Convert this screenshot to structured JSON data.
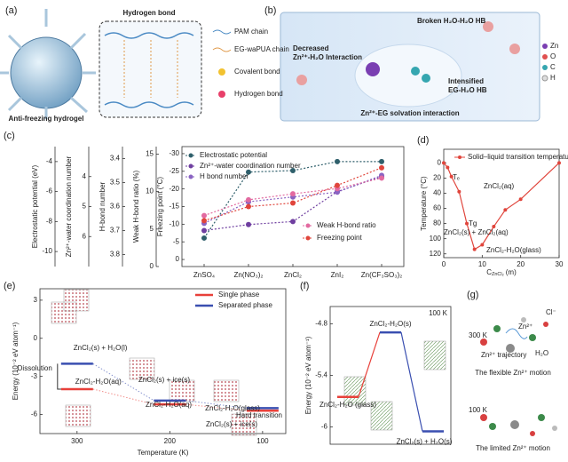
{
  "panels": {
    "a": {
      "label": "(a)",
      "title": "Hydrogen bond",
      "caption": "Anti-freezing hydrogel",
      "legend": [
        "PAM chain",
        "EG-waPUA chain",
        "Covalent bond",
        "Hydrogen bond"
      ]
    },
    "b": {
      "label": "(b)",
      "texts": [
        "Decreased",
        "Zn²⁺-H₂O Interaction",
        "Broken H₂O-H₂O HB",
        "Intensified",
        "EG-H₂O HB",
        "Zn²⁺-EG solvation interaction"
      ],
      "legend": [
        "Zn",
        "O",
        "C",
        "H"
      ]
    },
    "g": {
      "label": "(g)",
      "texts": [
        "300 K",
        "Cl⁻",
        "Zn²⁺",
        "Zn²⁺ trajectory",
        "H₂O",
        "The flexible Zn²⁺ motion",
        "100 K",
        "The limited Zn²⁺ motion"
      ]
    }
  },
  "chart_data": [
    {
      "type": "multiaxis_line",
      "label": "(c)",
      "categories": [
        "ZnSO₄",
        "Zn(NO₃)₂",
        "ZnCl₂",
        "ZnI₂",
        "Zn(CF₃SO₃)₂"
      ],
      "axes": [
        {
          "label": "Electrostatic potential (eV)",
          "ylim": [
            -11,
            -3
          ],
          "yticks": [
            -4,
            -6,
            -8,
            -10
          ]
        },
        {
          "label": "Zn²⁺-water coordination number",
          "ylim": [
            7,
            3
          ],
          "yticks": [
            4,
            5,
            6
          ]
        },
        {
          "label": "H-bond number",
          "ylim": [
            3.85,
            3.35
          ],
          "yticks": [
            3.4,
            3.5,
            3.6,
            3.7,
            3.8
          ]
        },
        {
          "label": "Weak H-bond ratio (%)",
          "ylim": [
            0,
            16
          ],
          "yticks": [
            0,
            5,
            10,
            15
          ]
        },
        {
          "label": "Freezing point (°C)",
          "ylim": [
            2,
            -32
          ],
          "yticks": [
            -30,
            -25,
            -20,
            -15,
            -10,
            -5,
            0
          ]
        }
      ],
      "series": [
        {
          "name": "Electrostatic potential",
          "color": "#2f5f6b",
          "axis": 0,
          "values": [
            -9.1,
            -4.7,
            -4.6,
            -4.0,
            -4.0
          ]
        },
        {
          "name": "Zn²⁺-water coordination number",
          "color": "#6f3fa0",
          "axis": 1,
          "values": [
            5.8,
            5.6,
            5.5,
            4.5,
            4.0
          ]
        },
        {
          "name": "H bond number",
          "color": "#8a63c2",
          "axis": 2,
          "values": [
            3.67,
            3.58,
            3.56,
            3.54,
            3.47
          ]
        },
        {
          "name": "Weak H-bond ratio",
          "color": "#e26aa0",
          "axis": 3,
          "values": [
            6.8,
            8.9,
            9.7,
            10.4,
            11.8
          ]
        },
        {
          "name": "Freezing point",
          "color": "#e0453c",
          "axis": 4,
          "values": [
            -11,
            -15,
            -16,
            -21,
            -26
          ]
        }
      ]
    },
    {
      "type": "line",
      "label": "(d)",
      "ylabel": "Temperature (°C)",
      "xlabel": "C",
      "xlabel_sub": "ZnCl₂",
      "xlabel_unit": "(m)",
      "xlim": [
        0,
        30
      ],
      "xticks": [
        0,
        10,
        20,
        30
      ],
      "ylim": [
        125,
        -18
      ],
      "yticks": [
        0,
        20,
        40,
        60,
        80,
        100,
        120
      ],
      "series": [
        {
          "name": "Solid–liquid transition temperature",
          "color": "#e0453c",
          "x": [
            0,
            1,
            2,
            4,
            6,
            8,
            10,
            13,
            16,
            20,
            30
          ],
          "values": [
            0,
            6,
            18,
            38,
            80,
            114,
            108,
            84,
            62,
            48,
            0
          ]
        }
      ],
      "annotations": [
        "ZnCl₂(aq)",
        "Tₑ",
        "Tg",
        "ZnCl₂(s) + ZnCl₂(aq)",
        "ZnCl₂-H₂O(glass)"
      ]
    },
    {
      "type": "energy_levels",
      "label": "(e)",
      "xlabel": "Temperature (K)",
      "ylabel": "Energy (10⁻² eV atom⁻¹)",
      "x": [
        300,
        200,
        100
      ],
      "xlim": [
        340,
        75
      ],
      "xticks": [
        300,
        200,
        100
      ],
      "ylim": [
        -7.5,
        3.9
      ],
      "yticks": [
        3,
        0,
        -3,
        -6
      ],
      "series": [
        {
          "name": "Single phase",
          "color": "#e8403a",
          "values": [
            -4.0,
            -5.2,
            -5.7
          ]
        },
        {
          "name": "Separated phase",
          "color": "#3a4fb0",
          "values": [
            -2.0,
            -4.9,
            -5.5
          ]
        }
      ],
      "annotations": [
        "ZnCl₂(s) + H₂O(l)",
        "Dissolution",
        "ZnCl₂-H₂O(aq)",
        "ZnCl₂(s) + ice(s)",
        "ZnCl₂-H₂O(aq)",
        "ZnCl₂-H₂O(glass)",
        "Hard transition",
        "ZnCl₂(s) + ice(s)"
      ]
    },
    {
      "type": "energy_diagram",
      "label": "(f)",
      "condition": "100 K",
      "ylabel": "Energy (10⁻² eV atom⁻¹)",
      "ylim": [
        -6.2,
        -4.6
      ],
      "yticks": [
        -4.8,
        -5.4,
        -6.0
      ],
      "categories": [
        "ZnCl₂-H₂O (glass)",
        "ZnCl₂-H₂O(s)",
        "ZnCl₂(s) + H₂O(s)"
      ],
      "values": [
        -5.65,
        -4.9,
        -6.05
      ],
      "colors": [
        "#e8403a",
        "#3a4fb0"
      ]
    }
  ]
}
